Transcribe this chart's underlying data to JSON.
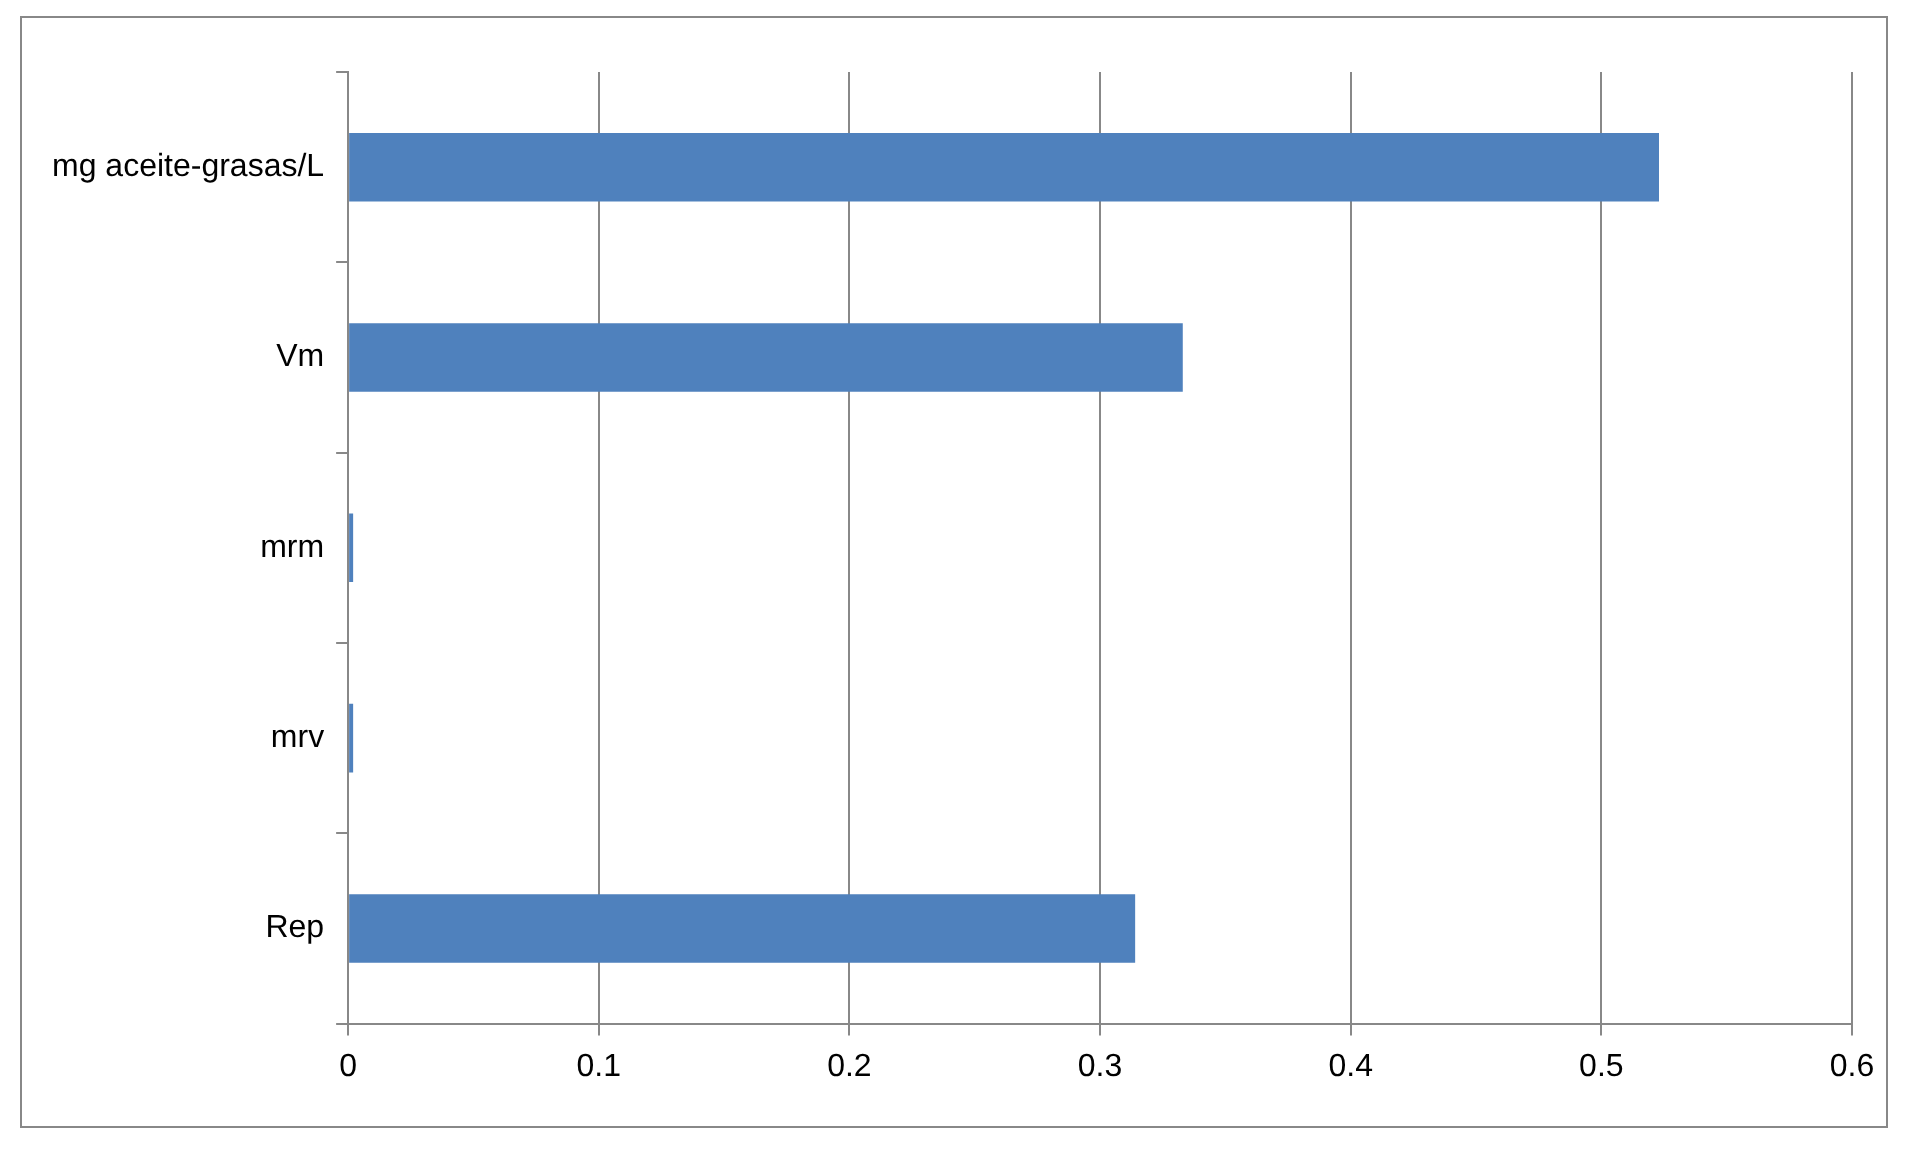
{
  "chart_data": {
    "type": "bar",
    "orientation": "horizontal",
    "categories": [
      "mg aceite-grasas/L",
      "Vm",
      "mrm",
      "mrv",
      "Rep"
    ],
    "values": [
      0.523,
      0.333,
      0.002,
      0.002,
      0.314
    ],
    "color": "#4f81bd",
    "xlim": [
      0,
      0.6
    ],
    "xticks": [
      0,
      0.1,
      0.2,
      0.3,
      0.4,
      0.5,
      0.6
    ],
    "grid": "x",
    "legend": false
  }
}
